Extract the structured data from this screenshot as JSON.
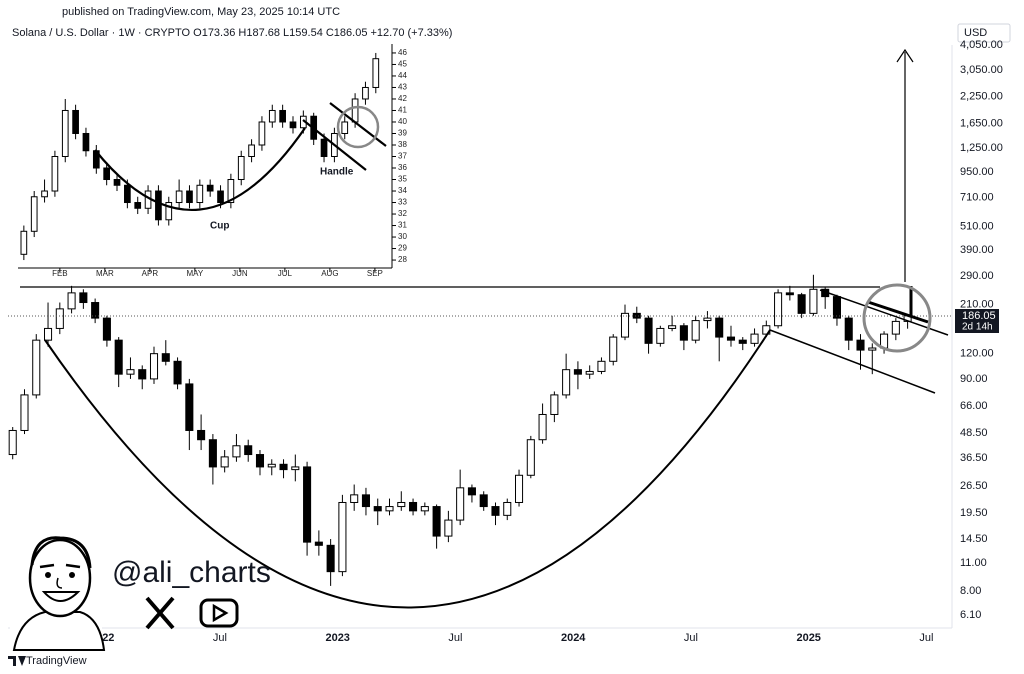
{
  "header": {
    "published": "published on TradingView.com, May 23, 2025 10:14 UTC",
    "legend": "Solana / U.S. Dollar · 1W · CRYPTO   O173.36  H187.68  L159.54  C186.05  +12.70 (+7.33%)",
    "currency": "USD",
    "price_label": "186.05",
    "countdown": "2d 14h",
    "watermark": "@ali_charts",
    "brand": "TradingView"
  },
  "chart_data": [
    {
      "type": "candlestick",
      "log_scale": true,
      "grid": false,
      "up_color": "#ffffff",
      "down_color": "#000000",
      "x": [
        2021.62,
        2021.67,
        2021.72,
        2021.77,
        2021.82,
        2021.87,
        2021.92,
        2021.97,
        2022.02,
        2022.07,
        2022.12,
        2022.17,
        2022.22,
        2022.27,
        2022.32,
        2022.37,
        2022.42,
        2022.47,
        2022.52,
        2022.57,
        2022.62,
        2022.67,
        2022.72,
        2022.77,
        2022.82,
        2022.87,
        2022.92,
        2022.97,
        2023.02,
        2023.07,
        2023.12,
        2023.17,
        2023.22,
        2023.27,
        2023.32,
        2023.37,
        2023.42,
        2023.47,
        2023.52,
        2023.57,
        2023.62,
        2023.67,
        2023.72,
        2023.77,
        2023.82,
        2023.87,
        2023.92,
        2023.97,
        2024.02,
        2024.07,
        2024.12,
        2024.17,
        2024.22,
        2024.27,
        2024.32,
        2024.37,
        2024.42,
        2024.47,
        2024.52,
        2024.57,
        2024.62,
        2024.67,
        2024.72,
        2024.77,
        2024.82,
        2024.87,
        2024.92,
        2024.97,
        2025.02,
        2025.07,
        2025.12,
        2025.17,
        2025.22,
        2025.27,
        2025.32,
        2025.37,
        2025.42
      ],
      "open": [
        38,
        50,
        75,
        140,
        160,
        200,
        240,
        215,
        180,
        140,
        95,
        100,
        90,
        120,
        110,
        85,
        50,
        45,
        33,
        37,
        42,
        38,
        33,
        34,
        32,
        33,
        14,
        13.5,
        10,
        22,
        24,
        21,
        20,
        21,
        22,
        20,
        21,
        15,
        18,
        26,
        24,
        21,
        19,
        22,
        30,
        45,
        60,
        75,
        100,
        95,
        98,
        110,
        145,
        190,
        180,
        135,
        160,
        165,
        140,
        175,
        180,
        145,
        140,
        135,
        150,
        165,
        240,
        235,
        190,
        250,
        230,
        180,
        140,
        125,
        128,
        150,
        173.36
      ],
      "high": [
        52,
        80,
        150,
        215,
        215,
        260,
        250,
        225,
        185,
        145,
        115,
        105,
        130,
        140,
        115,
        90,
        60,
        48,
        40,
        48,
        45,
        40,
        36,
        36,
        38,
        35,
        16,
        14.5,
        24,
        27,
        26,
        23,
        23,
        25,
        23,
        22,
        21.5,
        20,
        32,
        27,
        25,
        22,
        23,
        32,
        47,
        68,
        78,
        120,
        110,
        105,
        115,
        150,
        210,
        205,
        185,
        165,
        185,
        170,
        185,
        195,
        185,
        165,
        145,
        160,
        175,
        250,
        260,
        240,
        295,
        255,
        235,
        185,
        150,
        135,
        155,
        180,
        187.68
      ],
      "low": [
        36,
        48,
        72,
        130,
        150,
        190,
        200,
        170,
        130,
        82,
        90,
        80,
        85,
        105,
        80,
        40,
        40,
        27,
        31,
        35,
        35,
        30,
        30,
        29,
        28,
        12,
        12,
        8.5,
        9.5,
        20,
        19,
        17,
        19,
        20,
        19,
        19,
        13,
        14,
        17,
        22,
        20,
        17,
        18,
        21,
        29,
        43,
        55,
        72,
        80,
        90,
        95,
        105,
        140,
        170,
        120,
        130,
        155,
        125,
        135,
        160,
        110,
        130,
        125,
        130,
        145,
        160,
        220,
        180,
        185,
        200,
        165,
        125,
        100,
        95,
        120,
        140,
        159.54
      ],
      "close": [
        50,
        75,
        140,
        160,
        200,
        240,
        215,
        180,
        140,
        95,
        100,
        90,
        120,
        110,
        85,
        50,
        45,
        33,
        37,
        42,
        38,
        33,
        34,
        32,
        33,
        14,
        13.5,
        10,
        22,
        24,
        21,
        20,
        21,
        22,
        20,
        21,
        15,
        18,
        26,
        24,
        21,
        19,
        22,
        30,
        45,
        60,
        75,
        100,
        95,
        98,
        110,
        145,
        190,
        180,
        135,
        160,
        165,
        140,
        175,
        180,
        145,
        140,
        135,
        150,
        165,
        240,
        235,
        190,
        250,
        230,
        180,
        140,
        125,
        128,
        150,
        173.36,
        186.05
      ],
      "xlim": [
        2021.6,
        2025.6
      ],
      "xticks": [
        {
          "value": 2022,
          "label": "2022"
        },
        {
          "value": 2022.5,
          "label": "Jul"
        },
        {
          "value": 2023,
          "label": "2023"
        },
        {
          "value": 2023.5,
          "label": "Jul"
        },
        {
          "value": 2024,
          "label": "2024"
        },
        {
          "value": 2024.5,
          "label": "Jul"
        },
        {
          "value": 2025,
          "label": "2025"
        },
        {
          "value": 2025.5,
          "label": "Jul"
        }
      ],
      "ylim": [
        5.26,
        4050
      ],
      "yticks": [
        {
          "value": 4050,
          "label": "4,050.00"
        },
        {
          "value": 3050,
          "label": "3,050.00"
        },
        {
          "value": 2250,
          "label": "2,250.00"
        },
        {
          "value": 1650,
          "label": "1,650.00"
        },
        {
          "value": 1250,
          "label": "1,250.00"
        },
        {
          "value": 950,
          "label": "950.00"
        },
        {
          "value": 710,
          "label": "710.00"
        },
        {
          "value": 510,
          "label": "510.00"
        },
        {
          "value": 390,
          "label": "390.00"
        },
        {
          "value": 290,
          "label": "290.00"
        },
        {
          "value": 210,
          "label": "210.00"
        },
        {
          "value": 120,
          "label": "120.00"
        },
        {
          "value": 90,
          "label": "90.00"
        },
        {
          "value": 66,
          "label": "66.00"
        },
        {
          "value": 48.5,
          "label": "48.50"
        },
        {
          "value": 36.5,
          "label": "36.50"
        },
        {
          "value": 26.5,
          "label": "26.50"
        },
        {
          "value": 19.5,
          "label": "19.50"
        },
        {
          "value": 14.5,
          "label": "14.50"
        },
        {
          "value": 11,
          "label": "11.00"
        },
        {
          "value": 8,
          "label": "8.00"
        },
        {
          "value": 6.1,
          "label": "6.10"
        }
      ]
    },
    {
      "type": "candlestick",
      "log_scale": false,
      "grid": false,
      "up_color": "#ffffff",
      "down_color": "#000000",
      "annotations": [
        "Cup",
        "Handle"
      ],
      "x": [
        1.2,
        1.43,
        1.66,
        1.89,
        2.12,
        2.35,
        2.58,
        2.81,
        3.04,
        3.27,
        3.5,
        3.73,
        3.96,
        4.19,
        4.42,
        4.65,
        4.88,
        5.11,
        5.34,
        5.57,
        5.8,
        6.03,
        6.26,
        6.49,
        6.72,
        6.95,
        7.18,
        7.41,
        7.64,
        7.87,
        8.1,
        8.33,
        8.56,
        8.79,
        9.02
      ],
      "open": [
        28.5,
        30.5,
        33.5,
        34,
        37,
        41,
        39,
        37.5,
        36,
        35,
        34.5,
        33,
        32.5,
        34,
        31.5,
        33,
        34,
        33,
        34.5,
        34,
        33,
        35,
        37,
        38,
        40,
        41,
        40,
        39.5,
        40.5,
        38.5,
        37,
        39,
        40,
        42,
        43
      ],
      "high": [
        31,
        34,
        35,
        37.5,
        42,
        41.5,
        39.5,
        38,
        36.5,
        35.5,
        35,
        33.5,
        34.5,
        34.5,
        33.5,
        35,
        34.5,
        35,
        35,
        34.5,
        35.5,
        37.5,
        38.5,
        40.5,
        41.5,
        41.5,
        40.5,
        41,
        40.8,
        39,
        39.5,
        40.5,
        42.5,
        43.5,
        46
      ],
      "low": [
        28,
        30,
        33,
        33.5,
        36.5,
        38.5,
        37,
        35.5,
        34.5,
        34,
        32.5,
        32,
        32,
        31,
        31,
        32.5,
        32.5,
        32.5,
        33.5,
        32.5,
        32.5,
        34.5,
        36.5,
        37.5,
        39.5,
        39.5,
        39,
        39,
        38,
        36.5,
        36.5,
        38.5,
        39.5,
        41.5,
        42.5
      ],
      "close": [
        30.5,
        33.5,
        34,
        37,
        41,
        39,
        37.5,
        36,
        35,
        34.5,
        33,
        32.5,
        34,
        31.5,
        33,
        34,
        33,
        34.5,
        34,
        33,
        35,
        37,
        38,
        40,
        41,
        40,
        39.5,
        40.5,
        38.5,
        37,
        39,
        40,
        42,
        43,
        45.5
      ],
      "xlim": [
        1.07,
        9.38
      ],
      "xticks": [
        {
          "value": 2,
          "label": "FEB"
        },
        {
          "value": 3,
          "label": "MAR"
        },
        {
          "value": 4,
          "label": "APR"
        },
        {
          "value": 5,
          "label": "MAY"
        },
        {
          "value": 6,
          "label": "JUN"
        },
        {
          "value": 7,
          "label": "JUL"
        },
        {
          "value": 8,
          "label": "AUG"
        },
        {
          "value": 9,
          "label": "SEP"
        }
      ],
      "ylim": [
        27.57,
        46.43
      ],
      "yticks": [
        28,
        29,
        30,
        31,
        32,
        33,
        34,
        35,
        36,
        37,
        38,
        39,
        40,
        41,
        42,
        43,
        44,
        45,
        46
      ]
    }
  ]
}
